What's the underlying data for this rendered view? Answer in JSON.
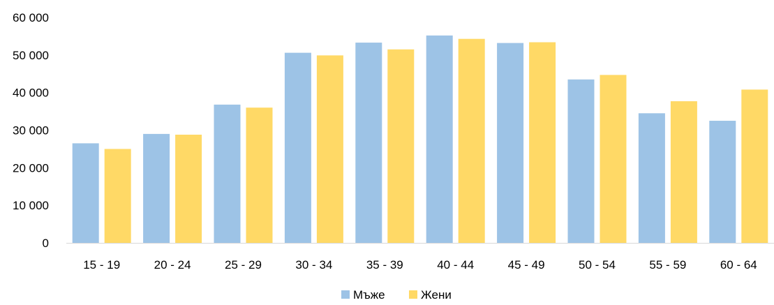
{
  "chart_data": {
    "type": "bar",
    "categories": [
      "15 - 19",
      "20 - 24",
      "25 - 29",
      "30 - 34",
      "35 - 39",
      "40 - 44",
      "45 - 49",
      "50 - 54",
      "55 - 59",
      "60 - 64"
    ],
    "series": [
      {
        "name": "Мъже",
        "color": "#9DC3E6",
        "values": [
          26500,
          29000,
          36800,
          50600,
          53300,
          55200,
          53200,
          43500,
          34500,
          32500
        ]
      },
      {
        "name": "Жени",
        "color": "#FFD966",
        "values": [
          25000,
          28800,
          36000,
          49900,
          51500,
          54300,
          53400,
          44700,
          37700,
          40800
        ]
      }
    ],
    "y_ticks": [
      "0",
      "10 000",
      "20 000",
      "30 000",
      "40 000",
      "50 000",
      "60 000"
    ],
    "ylim": [
      0,
      60000
    ],
    "grid": false,
    "legend_position": "bottom"
  }
}
